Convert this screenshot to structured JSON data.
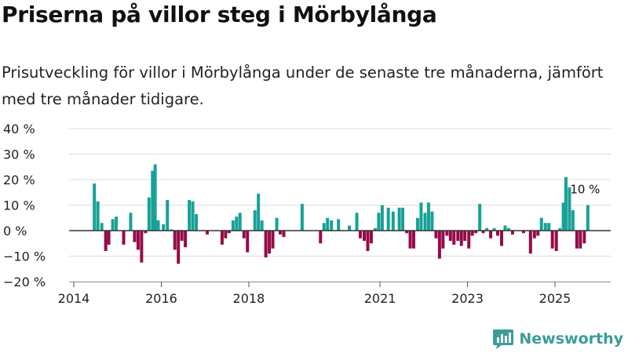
{
  "title": "Priserna på villor steg i Mörbylånga",
  "subtitle": "Prisutveckling för villor i Mörbylånga under de senaste tre månaderna, jämfört med tre månader tidigare.",
  "brand": {
    "name": "Newsworthy",
    "icon": "newsworthy-logo-icon"
  },
  "colors": {
    "positive": "#17a197",
    "negative": "#960a48",
    "grid": "#dddddd",
    "zero_line": "#333333",
    "text": "#222222",
    "brand": "#3a9d98"
  },
  "chart_data": {
    "type": "bar",
    "series_name": "Prisutveckling (%)",
    "x_unit": "year",
    "xlim": [
      2014.0,
      2026.2
    ],
    "ylim": [
      -20,
      40
    ],
    "y_ticks": [
      40,
      30,
      20,
      10,
      0,
      -10,
      -20
    ],
    "y_tick_labels": [
      "40 %",
      "30 %",
      "20 %",
      "10 %",
      "0 %",
      "−10 %",
      "−20 %"
    ],
    "x_ticks": [
      2014,
      2016,
      2018,
      2021,
      2023,
      2025
    ],
    "x_tick_labels": [
      "2014",
      "2016",
      "2018",
      "2021",
      "2023",
      "2025"
    ],
    "grid": true,
    "annotation": {
      "x": 2025.67,
      "y": 10,
      "text": "10 %"
    },
    "bars": [
      [
        2014.47,
        18.5
      ],
      [
        2014.55,
        11.5
      ],
      [
        2014.64,
        3
      ],
      [
        2014.73,
        -8
      ],
      [
        2014.8,
        -5.5
      ],
      [
        2014.89,
        4.5
      ],
      [
        2014.97,
        5.5
      ],
      [
        2015.14,
        -5.5
      ],
      [
        2015.3,
        7
      ],
      [
        2015.39,
        -4.5
      ],
      [
        2015.47,
        -7.5
      ],
      [
        2015.55,
        -12.5
      ],
      [
        2015.64,
        -1
      ],
      [
        2015.72,
        13
      ],
      [
        2015.8,
        23.5
      ],
      [
        2015.86,
        26
      ],
      [
        2015.93,
        4
      ],
      [
        2016.05,
        2.5
      ],
      [
        2016.14,
        12
      ],
      [
        2016.23,
        0.5
      ],
      [
        2016.31,
        -7.5
      ],
      [
        2016.39,
        -13
      ],
      [
        2016.47,
        -4
      ],
      [
        2016.55,
        -6.5
      ],
      [
        2016.64,
        12
      ],
      [
        2016.72,
        11.5
      ],
      [
        2016.8,
        6.5
      ],
      [
        2017.05,
        -1.5
      ],
      [
        2017.39,
        -5.5
      ],
      [
        2017.47,
        -3
      ],
      [
        2017.55,
        -1
      ],
      [
        2017.64,
        4
      ],
      [
        2017.72,
        5.5
      ],
      [
        2017.8,
        7
      ],
      [
        2017.89,
        -3
      ],
      [
        2017.97,
        -8.5
      ],
      [
        2018.14,
        8
      ],
      [
        2018.22,
        14.5
      ],
      [
        2018.3,
        4
      ],
      [
        2018.39,
        -10.5
      ],
      [
        2018.47,
        -9
      ],
      [
        2018.55,
        -7
      ],
      [
        2018.64,
        5
      ],
      [
        2018.72,
        -1.5
      ],
      [
        2018.8,
        -2.5
      ],
      [
        2019.22,
        10.5
      ],
      [
        2019.64,
        -5
      ],
      [
        2019.72,
        3
      ],
      [
        2019.8,
        5
      ],
      [
        2019.89,
        4
      ],
      [
        2020.05,
        4.5
      ],
      [
        2020.3,
        2
      ],
      [
        2020.47,
        7
      ],
      [
        2020.55,
        -3
      ],
      [
        2020.64,
        -4
      ],
      [
        2020.72,
        -8
      ],
      [
        2020.8,
        -5
      ],
      [
        2020.89,
        1
      ],
      [
        2020.97,
        7
      ],
      [
        2021.05,
        10
      ],
      [
        2021.19,
        9
      ],
      [
        2021.3,
        7.5
      ],
      [
        2021.44,
        9
      ],
      [
        2021.52,
        9
      ],
      [
        2021.61,
        -1
      ],
      [
        2021.69,
        -7
      ],
      [
        2021.77,
        -7
      ],
      [
        2021.86,
        5
      ],
      [
        2021.94,
        11
      ],
      [
        2022.03,
        7
      ],
      [
        2022.11,
        11
      ],
      [
        2022.19,
        7.5
      ],
      [
        2022.28,
        -3
      ],
      [
        2022.36,
        -11
      ],
      [
        2022.44,
        -7
      ],
      [
        2022.53,
        -2
      ],
      [
        2022.61,
        -4
      ],
      [
        2022.69,
        -5.5
      ],
      [
        2022.78,
        -4
      ],
      [
        2022.86,
        -6
      ],
      [
        2022.94,
        -4
      ],
      [
        2023.03,
        -7
      ],
      [
        2023.11,
        -2
      ],
      [
        2023.19,
        -1
      ],
      [
        2023.28,
        10.5
      ],
      [
        2023.36,
        -1
      ],
      [
        2023.44,
        1
      ],
      [
        2023.53,
        -3
      ],
      [
        2023.61,
        1
      ],
      [
        2023.69,
        -2
      ],
      [
        2023.78,
        -6
      ],
      [
        2023.86,
        2
      ],
      [
        2023.94,
        1
      ],
      [
        2024.03,
        -1.5
      ],
      [
        2024.28,
        -1
      ],
      [
        2024.44,
        -9
      ],
      [
        2024.53,
        -3
      ],
      [
        2024.61,
        -2
      ],
      [
        2024.69,
        5
      ],
      [
        2024.78,
        3
      ],
      [
        2024.86,
        3
      ],
      [
        2024.94,
        -7
      ],
      [
        2025.03,
        -8
      ],
      [
        2025.11,
        1
      ],
      [
        2025.19,
        11
      ],
      [
        2025.25,
        21
      ],
      [
        2025.33,
        17
      ],
      [
        2025.41,
        8
      ],
      [
        2025.5,
        -7
      ],
      [
        2025.58,
        -7
      ],
      [
        2025.67,
        -5
      ],
      [
        2025.75,
        10
      ]
    ]
  }
}
